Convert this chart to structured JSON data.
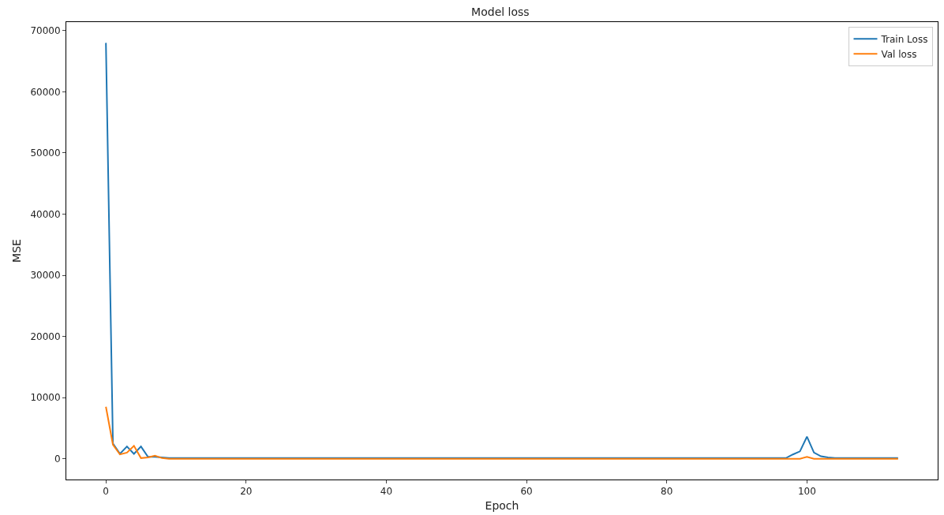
{
  "chart_data": {
    "type": "line",
    "title": "Model loss",
    "xlabel": "Epoch",
    "ylabel": "MSE",
    "xlim": [
      -5.65,
      118.65
    ],
    "xticks": [
      0,
      20,
      40,
      60,
      80,
      100
    ],
    "ylim": [
      -3400,
      71400
    ],
    "yticks": [
      0,
      10000,
      20000,
      30000,
      40000,
      50000,
      60000,
      70000
    ],
    "grid": false,
    "legend": "top right",
    "marker": "none",
    "line_style": "solid",
    "series": [
      {
        "name": "Train Loss",
        "color": "#1f77b4",
        "x": [
          0,
          1,
          2,
          3,
          4,
          5,
          6,
          7,
          8,
          9,
          10,
          11,
          12,
          20,
          40,
          60,
          80,
          96,
          97,
          98,
          99,
          100,
          101,
          102,
          103,
          104,
          105,
          113
        ],
        "values": [
          68000,
          2500,
          800,
          2000,
          800,
          2000,
          300,
          300,
          200,
          100,
          100,
          100,
          100,
          100,
          100,
          100,
          100,
          100,
          100,
          700,
          1200,
          3600,
          1000,
          400,
          200,
          100,
          100,
          100
        ]
      },
      {
        "name": "Val loss",
        "color": "#ff7f0e",
        "x": [
          0,
          1,
          2,
          3,
          4,
          5,
          6,
          7,
          8,
          9,
          10,
          20,
          40,
          60,
          80,
          99,
          100,
          101,
          102,
          113
        ],
        "values": [
          8500,
          2300,
          700,
          1000,
          2100,
          100,
          200,
          500,
          100,
          0,
          0,
          0,
          0,
          0,
          0,
          0,
          300,
          0,
          0,
          0
        ]
      }
    ]
  }
}
